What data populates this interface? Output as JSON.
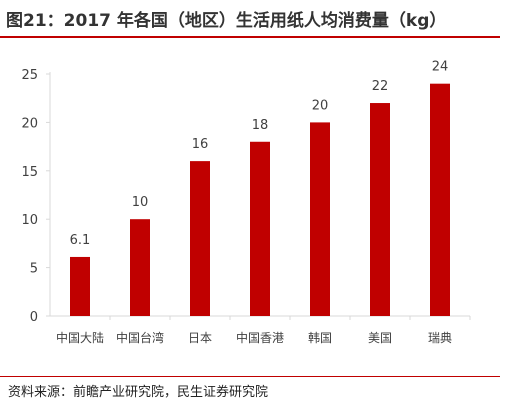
{
  "title": "图21：2017 年各国（地区）生活用纸人均消费量（kg）",
  "source": "资料来源：前瞻产业研究院，民生证券研究院",
  "colors": {
    "bar": "#c00000",
    "accent": "#c00000",
    "axis": "#d9d9d9",
    "text": "#333333"
  },
  "chart_data": {
    "type": "bar",
    "title": "图21：2017 年各国（地区）生活用纸人均消费量（kg）",
    "xlabel": "",
    "ylabel": "",
    "categories": [
      "中国大陆",
      "中国台湾",
      "日本",
      "中国香港",
      "韩国",
      "美国",
      "瑞典"
    ],
    "values": [
      6.1,
      10,
      16,
      18,
      20,
      22,
      24
    ],
    "value_labels": [
      "6.1",
      "10",
      "16",
      "18",
      "20",
      "22",
      "24"
    ],
    "ylim": [
      0,
      25
    ],
    "yticks": [
      0,
      5,
      10,
      15,
      20,
      25
    ],
    "grid": false,
    "legend": "none"
  }
}
